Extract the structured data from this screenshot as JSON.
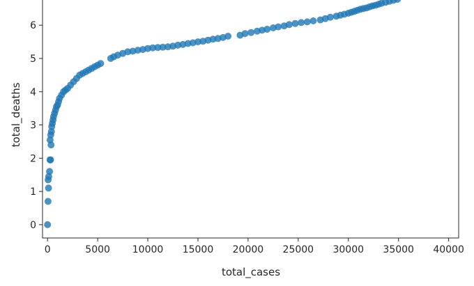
{
  "chart_data": {
    "type": "scatter",
    "title": "",
    "xlabel": "total_cases",
    "ylabel": "total_deaths",
    "xlim": [
      -500,
      41000
    ],
    "ylim": [
      -0.4,
      6.8
    ],
    "x_ticks": [
      0,
      5000,
      10000,
      15000,
      20000,
      25000,
      30000,
      35000,
      40000
    ],
    "x_tick_labels": [
      "0",
      "5000",
      "10000",
      "15000",
      "20000",
      "25000",
      "30000",
      "35000",
      "40000"
    ],
    "y_ticks": [
      0,
      1,
      2,
      3,
      4,
      5,
      6
    ],
    "y_tick_labels": [
      "0",
      "1",
      "2",
      "3",
      "4",
      "5",
      "6"
    ],
    "grid": false,
    "legend": "none",
    "marker_color": "#1f77b4",
    "series": [
      {
        "x": [
          0,
          50,
          100,
          60,
          120,
          200,
          250,
          300,
          350,
          260,
          320,
          380,
          420,
          480,
          550,
          600,
          700,
          800,
          900,
          1000,
          1100,
          1200,
          1400,
          1600,
          1800,
          2000,
          2300,
          2600,
          2900,
          3200,
          3500,
          3800,
          4100,
          4400,
          4700,
          5000,
          5300,
          6300,
          6600,
          7000,
          7500,
          8000,
          8500,
          9000,
          9500,
          10000,
          10500,
          11000,
          11500,
          12000,
          12500,
          13000,
          13500,
          14000,
          14500,
          15000,
          15500,
          16000,
          16500,
          17000,
          17500,
          18000,
          19200,
          19700,
          20300,
          20900,
          21400,
          21900,
          22500,
          23000,
          23600,
          24100,
          24700,
          25300,
          25900,
          26500,
          27200,
          27700,
          28200,
          28800,
          29200,
          29600,
          30000,
          30300,
          30600,
          30900,
          31200,
          31500,
          31800,
          32100,
          32400,
          32700,
          33000,
          33300,
          33700,
          34100,
          34500,
          34900
        ],
        "y": [
          0,
          0.7,
          1.1,
          1.35,
          1.45,
          1.6,
          1.95,
          1.95,
          2.4,
          2.55,
          2.7,
          2.8,
          2.95,
          3.05,
          3.15,
          3.25,
          3.35,
          3.45,
          3.55,
          3.6,
          3.7,
          3.8,
          3.9,
          4.0,
          4.05,
          4.1,
          4.2,
          4.3,
          4.4,
          4.5,
          4.55,
          4.6,
          4.65,
          4.7,
          4.75,
          4.8,
          4.85,
          5.0,
          5.05,
          5.1,
          5.15,
          5.2,
          5.22,
          5.25,
          5.27,
          5.3,
          5.32,
          5.33,
          5.34,
          5.35,
          5.37,
          5.4,
          5.42,
          5.45,
          5.47,
          5.5,
          5.52,
          5.55,
          5.58,
          5.6,
          5.63,
          5.67,
          5.7,
          5.75,
          5.78,
          5.82,
          5.85,
          5.88,
          5.92,
          5.95,
          5.98,
          6.02,
          6.05,
          6.08,
          6.1,
          6.13,
          6.16,
          6.2,
          6.24,
          6.27,
          6.3,
          6.33,
          6.36,
          6.39,
          6.42,
          6.45,
          6.48,
          6.5,
          6.52,
          6.55,
          6.58,
          6.6,
          6.63,
          6.66,
          6.69,
          6.72,
          6.75,
          6.78
        ]
      }
    ]
  }
}
